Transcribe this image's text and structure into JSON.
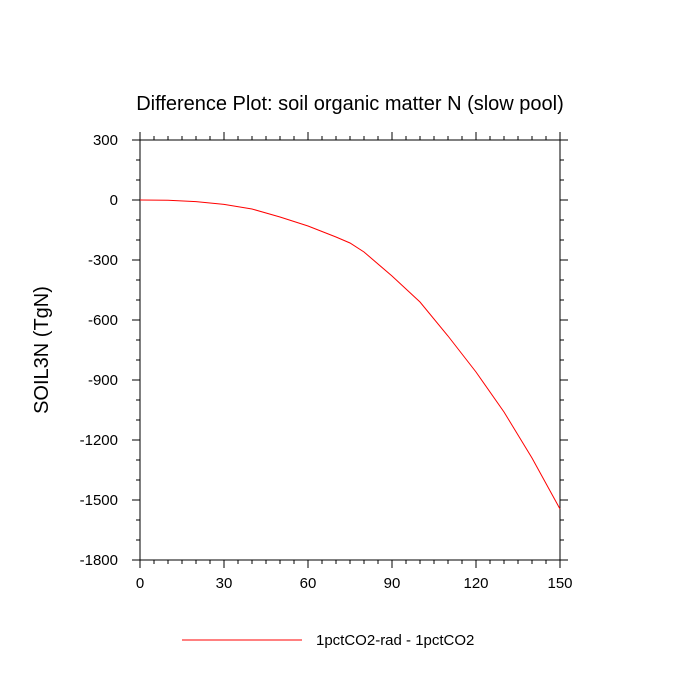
{
  "chart_data": {
    "type": "line",
    "title": "Difference Plot: soil organic matter N (slow pool)",
    "xlabel": "",
    "ylabel": "SOIL3N  (TgN)",
    "xlim": [
      0,
      150
    ],
    "ylim": [
      -1800,
      300
    ],
    "xticks": [
      "0",
      "30",
      "60",
      "90",
      "120",
      "150"
    ],
    "yticks": [
      "300",
      "0",
      "-300",
      "-600",
      "-900",
      "-1200",
      "-1500",
      "-1800"
    ],
    "series": [
      {
        "name": "1pctCO2-rad - 1pctCO2",
        "color": "#ff0000",
        "x": [
          0,
          10,
          20,
          30,
          40,
          50,
          60,
          70,
          75,
          80,
          90,
          100,
          110,
          120,
          130,
          140,
          150
        ],
        "y": [
          0,
          -1,
          -8,
          -22,
          -45,
          -85,
          -130,
          -185,
          -215,
          -260,
          -380,
          -510,
          -680,
          -860,
          -1060,
          -1290,
          -1545
        ]
      }
    ],
    "legend_position": "bottom-center",
    "grid": false
  }
}
